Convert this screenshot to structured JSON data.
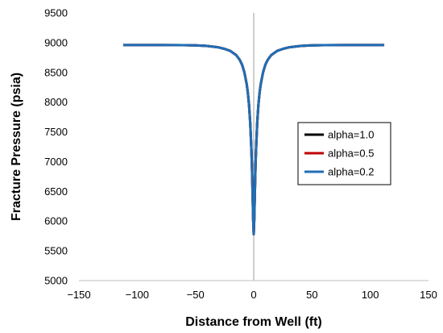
{
  "chart_data": {
    "type": "line",
    "xlabel": "Distance from Well (ft)",
    "ylabel": "Fracture Pressure (psia)",
    "xlim": [
      -150,
      150
    ],
    "ylim": [
      5000,
      9500
    ],
    "x_ticks": [
      -150,
      -100,
      -50,
      0,
      50,
      100,
      150
    ],
    "y_ticks": [
      5000,
      5500,
      6000,
      6500,
      7000,
      7500,
      8000,
      8500,
      9000,
      9500
    ],
    "x_tick_labels": [
      "−150",
      "−100",
      "−50",
      "0",
      "50",
      "100",
      "150"
    ],
    "y_tick_labels": [
      "5000",
      "5500",
      "6000",
      "6500",
      "7000",
      "7500",
      "8000",
      "8500",
      "9000",
      "9500"
    ],
    "grid": false,
    "legend_position": "right",
    "x": [
      -112,
      -100,
      -80,
      -60,
      -50,
      -40,
      -30,
      -25,
      -20,
      -15,
      -12,
      -10,
      -8,
      -6,
      -5,
      -4,
      -3,
      -2,
      -1.5,
      -1,
      -0.5,
      0,
      0.5,
      1,
      1.5,
      2,
      3,
      4,
      5,
      6,
      8,
      10,
      12,
      15,
      20,
      25,
      30,
      40,
      50,
      60,
      80,
      100,
      112
    ],
    "series": [
      {
        "name": "alpha=1.0",
        "color": "#000000",
        "values": [
          8960,
          8960,
          8960,
          8958,
          8955,
          8945,
          8920,
          8895,
          8860,
          8790,
          8710,
          8630,
          8500,
          8300,
          8150,
          7950,
          7650,
          7200,
          6900,
          6500,
          6050,
          5780,
          6050,
          6500,
          6900,
          7200,
          7650,
          7950,
          8150,
          8300,
          8500,
          8630,
          8710,
          8790,
          8860,
          8895,
          8920,
          8945,
          8955,
          8958,
          8960,
          8960,
          8960
        ]
      },
      {
        "name": "alpha=0.5",
        "color": "#c00000",
        "values": [
          8960,
          8960,
          8960,
          8958,
          8955,
          8945,
          8920,
          8895,
          8860,
          8790,
          8710,
          8630,
          8500,
          8300,
          8150,
          7950,
          7650,
          7200,
          6900,
          6500,
          6050,
          5780,
          6050,
          6500,
          6900,
          7200,
          7650,
          7950,
          8150,
          8300,
          8500,
          8630,
          8710,
          8790,
          8860,
          8895,
          8920,
          8945,
          8955,
          8958,
          8960,
          8960,
          8960
        ]
      },
      {
        "name": "alpha=0.2",
        "color": "#1f6eb5",
        "values": [
          8960,
          8960,
          8960,
          8958,
          8955,
          8945,
          8920,
          8895,
          8860,
          8790,
          8710,
          8630,
          8500,
          8300,
          8150,
          7950,
          7650,
          7200,
          6900,
          6500,
          6050,
          5780,
          6050,
          6500,
          6900,
          7200,
          7650,
          7950,
          8150,
          8300,
          8500,
          8630,
          8710,
          8790,
          8860,
          8895,
          8920,
          8945,
          8955,
          8958,
          8960,
          8960,
          8960
        ]
      }
    ]
  }
}
